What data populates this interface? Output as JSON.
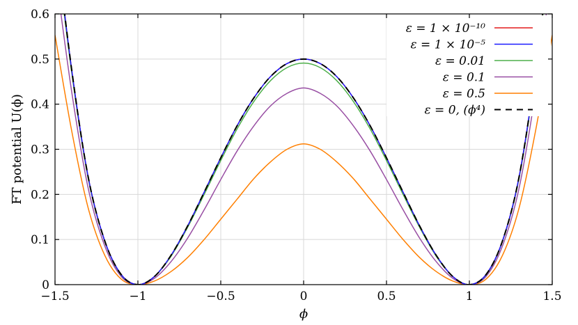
{
  "chart_data": {
    "type": "line",
    "title": "",
    "xlabel": "ϕ",
    "ylabel": "FT potential U(ϕ)",
    "xlim": [
      -1.5,
      1.5
    ],
    "ylim": [
      0,
      0.6
    ],
    "x_ticks": [
      "−1.5",
      "−1",
      "−0.5",
      "0",
      "0.5",
      "1",
      "1.5"
    ],
    "y_ticks": [
      "0",
      "0.1",
      "0.2",
      "0.3",
      "0.4",
      "0.5",
      "0.6"
    ],
    "grid": true,
    "legend_position": "top-right",
    "x": [
      -1.5,
      -1.4,
      -1.3,
      -1.2,
      -1.1,
      -1.0,
      -0.9,
      -0.8,
      -0.7,
      -0.6,
      -0.5,
      -0.4,
      -0.3,
      -0.2,
      -0.1,
      0.0,
      0.1,
      0.2,
      0.3,
      0.4,
      0.5,
      0.6,
      0.7,
      0.8,
      0.9,
      1.0,
      1.1,
      1.2,
      1.3,
      1.4,
      1.5
    ],
    "series": [
      {
        "name": "ε = 1 × 10⁻¹⁰",
        "color": "#e41a1c",
        "dash": "none",
        "values": [
          0.781,
          0.478,
          0.239,
          0.097,
          0.022,
          0.0,
          0.018,
          0.065,
          0.13,
          0.205,
          0.281,
          0.353,
          0.414,
          0.461,
          0.49,
          0.5,
          0.49,
          0.461,
          0.414,
          0.353,
          0.281,
          0.205,
          0.13,
          0.065,
          0.018,
          0.0,
          0.022,
          0.097,
          0.239,
          0.478,
          0.781
        ]
      },
      {
        "name": "ε = 1 × 10⁻⁵",
        "color": "#1a1aff",
        "dash": "none",
        "values": [
          0.781,
          0.478,
          0.239,
          0.097,
          0.022,
          0.0,
          0.018,
          0.065,
          0.13,
          0.205,
          0.281,
          0.353,
          0.414,
          0.461,
          0.49,
          0.5,
          0.49,
          0.461,
          0.414,
          0.353,
          0.281,
          0.205,
          0.13,
          0.065,
          0.018,
          0.0,
          0.022,
          0.097,
          0.239,
          0.478,
          0.781
        ]
      },
      {
        "name": "ε = 0.01",
        "color": "#4daf4a",
        "dash": "none",
        "values": [
          0.77,
          0.472,
          0.236,
          0.096,
          0.021,
          0.0,
          0.018,
          0.063,
          0.127,
          0.2,
          0.275,
          0.346,
          0.406,
          0.452,
          0.481,
          0.491,
          0.481,
          0.452,
          0.406,
          0.346,
          0.275,
          0.2,
          0.127,
          0.063,
          0.018,
          0.0,
          0.021,
          0.096,
          0.236,
          0.472,
          0.77
        ]
      },
      {
        "name": "ε = 0.1",
        "color": "#984ea3",
        "dash": "none",
        "values": [
          0.7,
          0.429,
          0.214,
          0.086,
          0.018,
          0.0,
          0.014,
          0.051,
          0.103,
          0.166,
          0.233,
          0.297,
          0.352,
          0.396,
          0.424,
          0.436,
          0.424,
          0.396,
          0.352,
          0.297,
          0.233,
          0.166,
          0.103,
          0.051,
          0.014,
          0.0,
          0.018,
          0.086,
          0.214,
          0.429,
          0.7
        ]
      },
      {
        "name": "ε = 0.5",
        "color": "#ff7f00",
        "dash": "none",
        "values": [
          0.553,
          0.342,
          0.17,
          0.065,
          0.012,
          0.0,
          0.008,
          0.029,
          0.06,
          0.1,
          0.145,
          0.19,
          0.235,
          0.272,
          0.3,
          0.312,
          0.3,
          0.272,
          0.235,
          0.19,
          0.145,
          0.1,
          0.06,
          0.029,
          0.008,
          0.0,
          0.012,
          0.065,
          0.17,
          0.342,
          0.553
        ]
      },
      {
        "name": "ε = 0,    (ϕ⁴)",
        "color": "#000000",
        "dash": "9,7",
        "values": [
          0.781,
          0.478,
          0.239,
          0.097,
          0.022,
          0.0,
          0.018,
          0.065,
          0.13,
          0.205,
          0.281,
          0.353,
          0.414,
          0.461,
          0.49,
          0.5,
          0.49,
          0.461,
          0.414,
          0.353,
          0.281,
          0.205,
          0.13,
          0.065,
          0.018,
          0.0,
          0.022,
          0.097,
          0.239,
          0.478,
          0.781
        ]
      }
    ]
  }
}
